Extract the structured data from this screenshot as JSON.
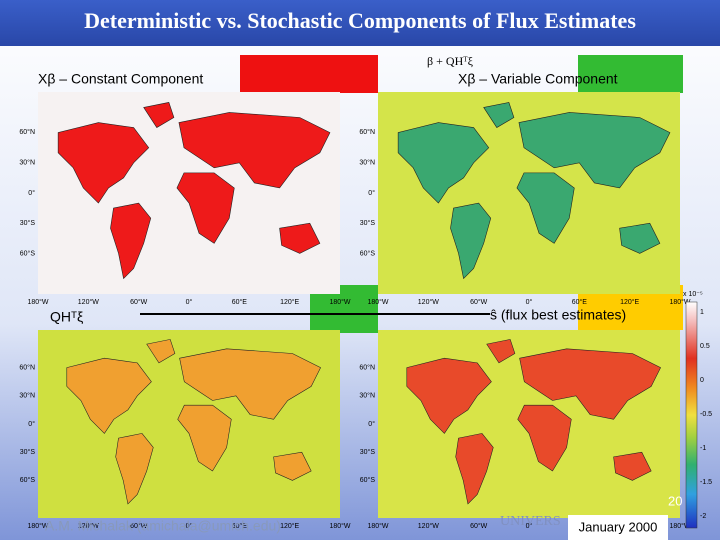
{
  "title": "Deterministic vs. Stochastic Components of Flux Estimates",
  "formula": "β + QHᵀξ",
  "panels": [
    {
      "label": "Xβ – Constant Component"
    },
    {
      "label": "Xβ – Variable Component"
    },
    {
      "label": "QHᵀξ"
    },
    {
      "label": "ŝ (flux best estimates)"
    }
  ],
  "latitude_labels": [
    "60°N",
    "30°N",
    "0°",
    "30°S",
    "60°S"
  ],
  "longitude_labels": [
    "180°W",
    "120°W",
    "60°W",
    "0°",
    "60°E",
    "120°E",
    "180°W"
  ],
  "colorbar": {
    "unit": "x 10⁻⁵",
    "ticks": [
      "1",
      "0.5",
      "0",
      "-0.5",
      "-1",
      "-1.5",
      "-2"
    ]
  },
  "footer": {
    "author": "A.M. Michalak (amichala@umich.edu)",
    "page": "20",
    "university": "UNIVERS",
    "date": "January 2000"
  }
}
